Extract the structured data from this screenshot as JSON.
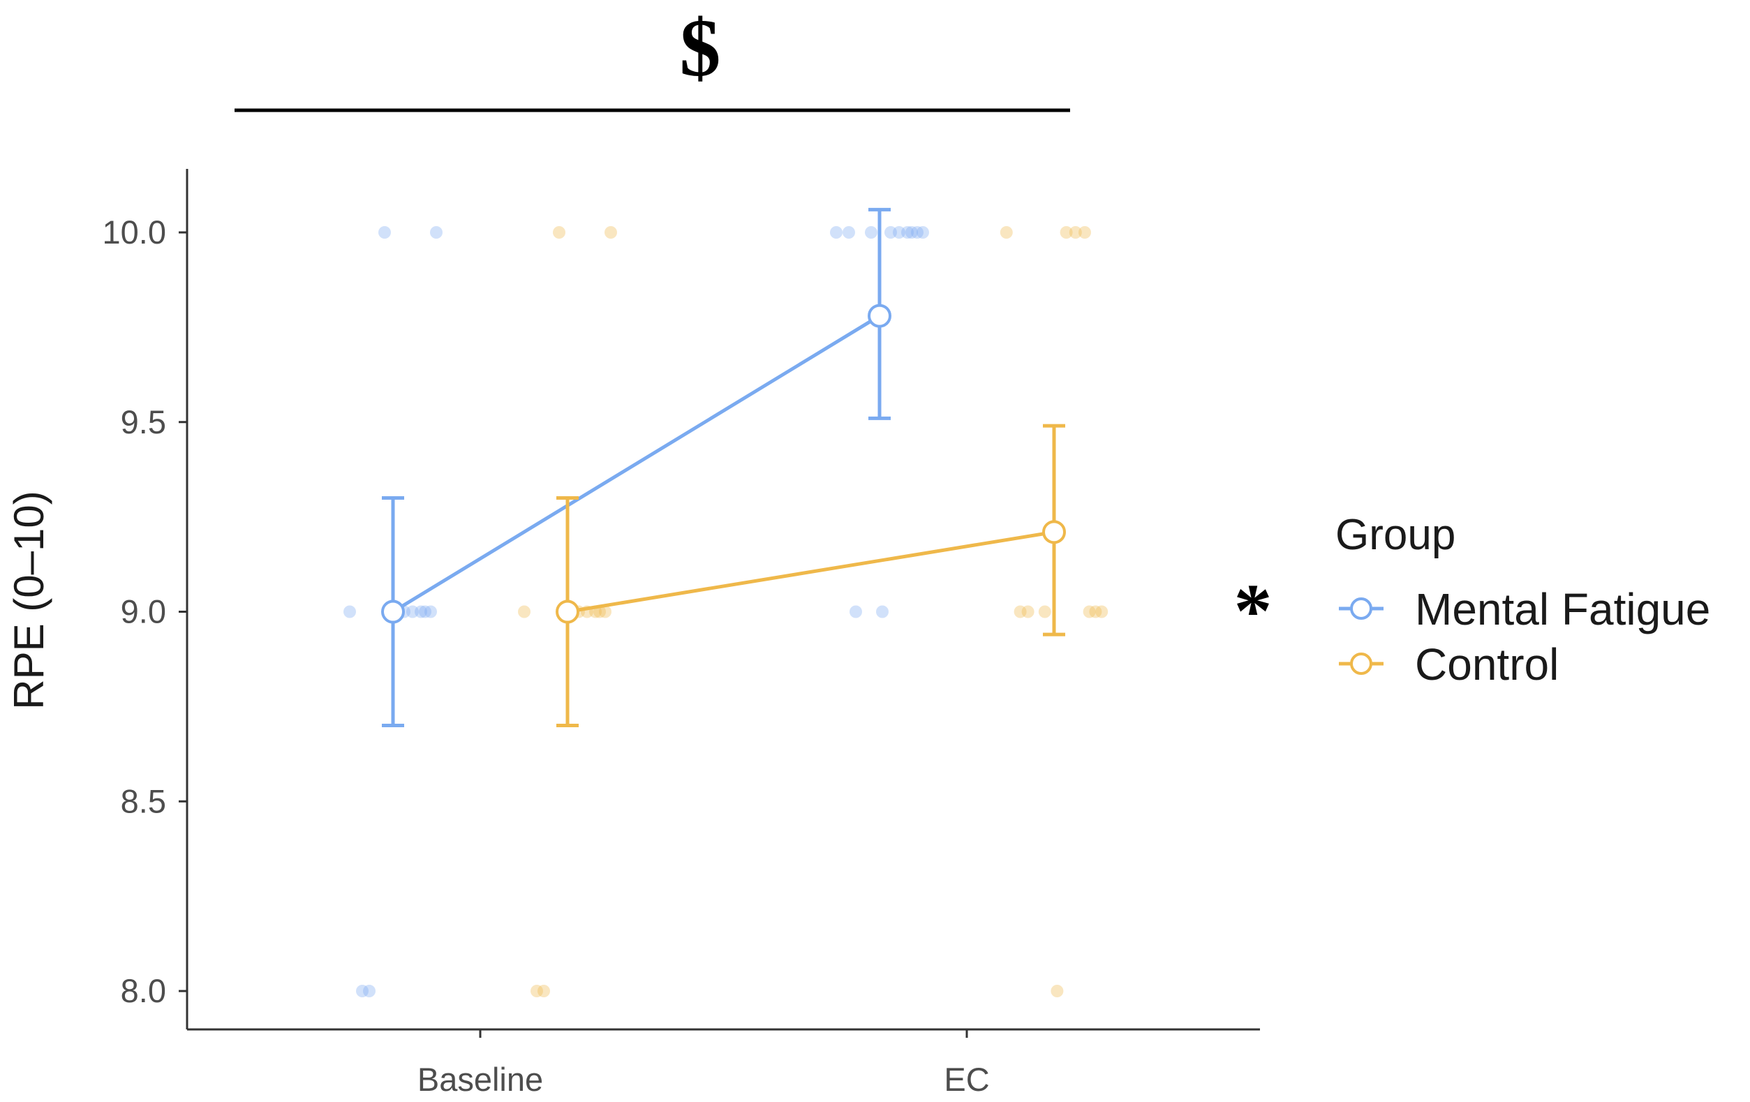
{
  "chart_data": {
    "type": "line",
    "categories": [
      "Baseline",
      "EC"
    ],
    "ylabel": "RPE (0–10)",
    "ylim": [
      7.9,
      10.17
    ],
    "yticks": [
      8.0,
      8.5,
      9.0,
      9.5,
      10.0
    ],
    "ytick_labels": [
      "8.0",
      "8.5",
      "9.0",
      "9.5",
      "10.0"
    ],
    "grid": false,
    "legend": {
      "title": "Group",
      "placement": "right"
    },
    "series": [
      {
        "name": "Mental Fatigue",
        "color": "#7aaaf0",
        "means": [
          9.0,
          9.78
        ],
        "error_low": [
          8.7,
          9.51
        ],
        "error_high": [
          9.3,
          10.06
        ],
        "points": [
          [
            9.0,
            9.0,
            9.0,
            9.0,
            9.0,
            9.0,
            10.0,
            10.0,
            8.0,
            8.0
          ],
          [
            10.0,
            10.0,
            10.0,
            10.0,
            10.0,
            10.0,
            10.0,
            10.0,
            10.0,
            9.0,
            9.0
          ]
        ]
      },
      {
        "name": "Control",
        "color": "#efb84a",
        "means": [
          9.0,
          9.21
        ],
        "error_low": [
          8.7,
          8.94
        ],
        "error_high": [
          9.3,
          9.49
        ],
        "points": [
          [
            9.0,
            9.0,
            9.0,
            9.0,
            9.0,
            9.0,
            10.0,
            10.0,
            8.0,
            8.0
          ],
          [
            10.0,
            10.0,
            10.0,
            10.0,
            9.0,
            9.0,
            9.0,
            9.0,
            9.0,
            9.0,
            8.0
          ]
        ]
      }
    ],
    "annotations": [
      {
        "label": "$",
        "placement": "top-bracket"
      },
      {
        "label": "*",
        "placement": "right-of-plot"
      }
    ]
  }
}
